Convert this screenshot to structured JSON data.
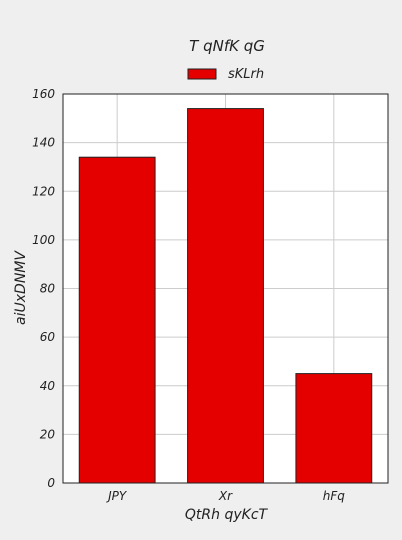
{
  "chart_data": {
    "type": "bar",
    "title": "T qNfK qG",
    "xlabel": "QtRh qyKcT",
    "ylabel": "aiUxDNMV",
    "categories": [
      "JPY",
      "Xr",
      "hFq"
    ],
    "series": [
      {
        "name": "sKLrh",
        "values": [
          134,
          154,
          45
        ],
        "color": "#e50000"
      }
    ],
    "ylim": [
      0,
      160
    ],
    "yticks": [
      0,
      20,
      40,
      60,
      80,
      100,
      120,
      140,
      160
    ],
    "grid": true,
    "legend": "top-center"
  },
  "colors": {
    "figure_background": "#efefef",
    "plot_background": "#ffffff",
    "grid": "#cccccc",
    "axis": "#222222",
    "bar_edge": "#222222"
  }
}
